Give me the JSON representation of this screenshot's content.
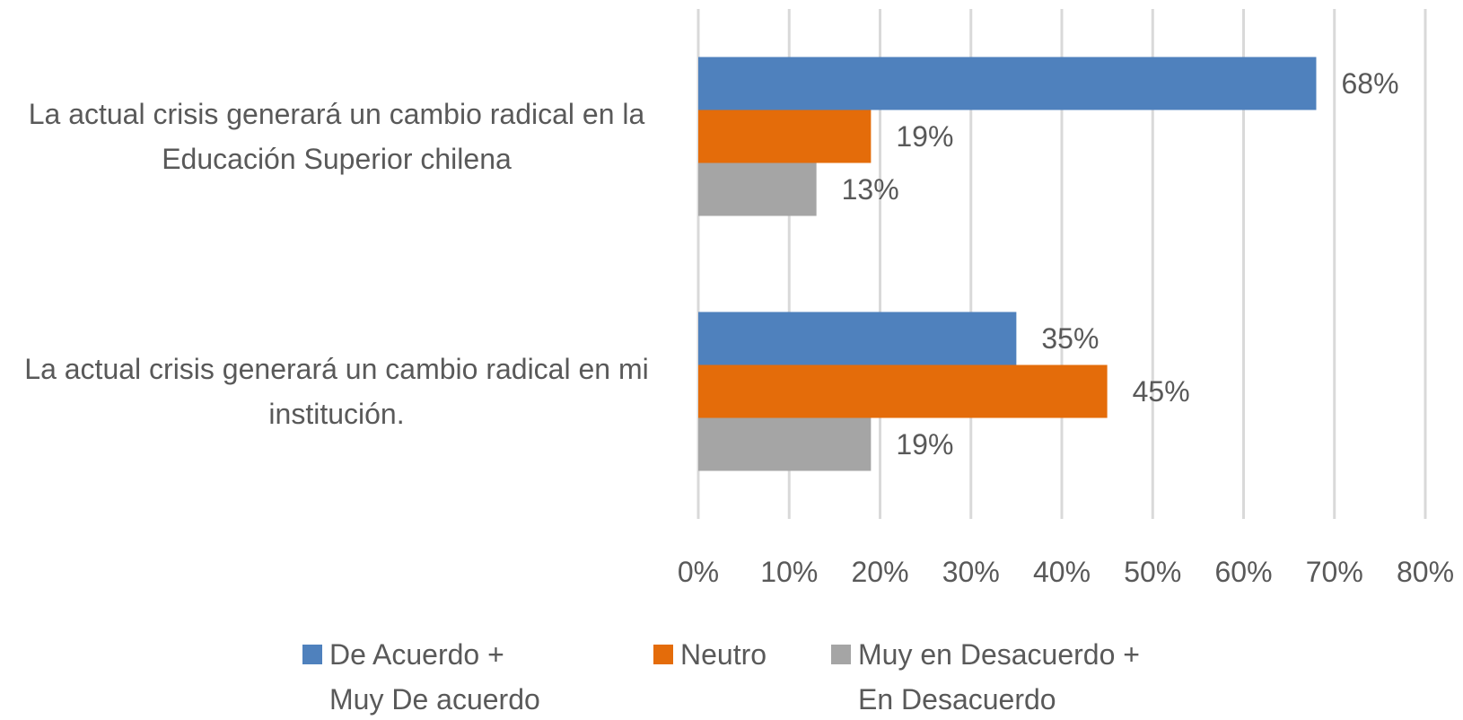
{
  "chart_data": {
    "type": "bar",
    "orientation": "horizontal",
    "categories": [
      "La actual crisis generará un cambio radical en la Educación Superior chilena",
      "La actual crisis generará un cambio radical en mi institución."
    ],
    "series": [
      {
        "name": "De Acuerdo + Muy De acuerdo",
        "color": "#4f81bd",
        "values": [
          68,
          35
        ],
        "value_labels": [
          "68%",
          "35%"
        ]
      },
      {
        "name": "Neutro",
        "color": "#e46c0a",
        "values": [
          19,
          45
        ],
        "value_labels": [
          "19%",
          "45%"
        ]
      },
      {
        "name": "Muy en Desacuerdo + En Desacuerdo",
        "color": "#a5a5a5",
        "values": [
          13,
          19
        ],
        "value_labels": [
          "13%",
          "19%"
        ]
      }
    ],
    "xlim": [
      0,
      80
    ],
    "xticks": [
      {
        "value": 0,
        "label": "0%"
      },
      {
        "value": 10,
        "label": "10%"
      },
      {
        "value": 20,
        "label": "20%"
      },
      {
        "value": 30,
        "label": "30%"
      },
      {
        "value": 40,
        "label": "40%"
      },
      {
        "value": 50,
        "label": "50%"
      },
      {
        "value": 60,
        "label": "60%"
      },
      {
        "value": 70,
        "label": "70%"
      },
      {
        "value": 80,
        "label": "80%"
      }
    ],
    "grid": true,
    "legend": "bottom"
  }
}
